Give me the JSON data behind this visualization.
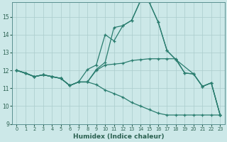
{
  "xlabel": "Humidex (Indice chaleur)",
  "background_color": "#cce8e8",
  "grid_color": "#aacccc",
  "line_color": "#2a7d6f",
  "xlim": [
    -0.5,
    23.5
  ],
  "ylim": [
    9,
    15.8
  ],
  "yticks": [
    9,
    10,
    11,
    12,
    13,
    14,
    15
  ],
  "xticks": [
    0,
    1,
    2,
    3,
    4,
    5,
    6,
    7,
    8,
    9,
    10,
    11,
    12,
    13,
    14,
    15,
    16,
    17,
    18,
    19,
    20,
    21,
    22,
    23
  ],
  "line1_x": [
    0,
    1,
    2,
    3,
    4,
    5,
    6,
    7,
    8,
    9,
    10,
    11,
    12,
    13,
    14,
    15,
    16,
    17,
    18,
    19,
    20,
    21,
    22,
    23
  ],
  "line1_y": [
    12.0,
    11.85,
    11.65,
    11.75,
    11.65,
    11.55,
    11.15,
    11.35,
    11.35,
    11.2,
    10.9,
    10.7,
    10.5,
    10.2,
    10.0,
    9.8,
    9.6,
    9.5,
    9.5,
    9.5,
    9.5,
    9.5,
    9.5,
    9.5
  ],
  "line2_x": [
    0,
    1,
    2,
    3,
    4,
    5,
    6,
    7,
    8,
    9,
    10,
    11,
    12,
    13,
    14,
    15,
    16,
    17,
    18,
    19,
    20,
    21,
    22,
    23
  ],
  "line2_y": [
    12.0,
    11.85,
    11.65,
    11.75,
    11.65,
    11.55,
    11.15,
    11.35,
    12.05,
    12.3,
    14.0,
    13.65,
    14.5,
    14.8,
    15.9,
    15.8,
    14.7,
    13.1,
    12.6,
    11.85,
    11.8,
    11.1,
    11.3,
    9.5
  ],
  "line3_x": [
    0,
    2,
    3,
    4,
    5,
    6,
    7,
    8,
    9,
    10,
    11,
    12,
    13,
    14,
    15,
    16,
    17,
    18,
    20,
    21,
    22,
    23
  ],
  "line3_y": [
    12.0,
    11.65,
    11.75,
    11.65,
    11.55,
    11.15,
    11.35,
    11.35,
    12.05,
    12.45,
    14.4,
    14.5,
    14.8,
    15.9,
    15.8,
    14.7,
    13.1,
    12.6,
    11.8,
    11.1,
    11.3,
    9.5
  ],
  "line4_x": [
    0,
    1,
    2,
    3,
    4,
    5,
    6,
    7,
    8,
    9,
    10,
    11,
    12,
    13,
    14,
    15,
    16,
    17,
    18,
    19,
    20,
    21,
    22,
    23
  ],
  "line4_y": [
    12.0,
    11.85,
    11.65,
    11.75,
    11.65,
    11.55,
    11.15,
    11.35,
    11.35,
    12.0,
    12.3,
    12.35,
    12.4,
    12.55,
    12.6,
    12.65,
    12.65,
    12.65,
    12.65,
    11.85,
    11.8,
    11.1,
    11.3,
    9.5
  ]
}
